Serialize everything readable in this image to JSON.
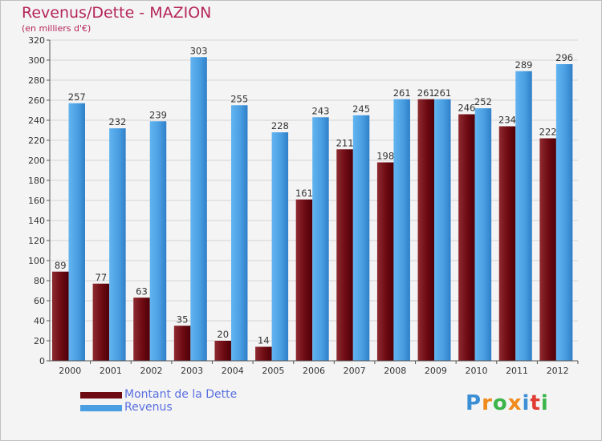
{
  "header": {
    "title": "Revenus/Dette - MAZION",
    "subtitle": "(en milliers d'€)"
  },
  "colors": {
    "dette": "#6d0a12",
    "revenus": "#4a9fe2",
    "title": "#b5265a",
    "legend_text": "#5a6fe0"
  },
  "legend": {
    "items": [
      {
        "label": "Montant de la Dette",
        "color": "#6d0a12"
      },
      {
        "label": "Revenus",
        "color": "#4a9fe2"
      }
    ]
  },
  "logo": {
    "letters": [
      "P",
      "r",
      "o",
      "x",
      "i",
      "t",
      "i"
    ],
    "colors": [
      "#3b8fd6",
      "#f08a1c",
      "#3bb54a",
      "#f08a1c",
      "#3b8fd6",
      "#e03c31",
      "#3bb54a"
    ]
  },
  "chart_data": {
    "type": "bar",
    "categories": [
      "2000",
      "2001",
      "2002",
      "2003",
      "2004",
      "2005",
      "2006",
      "2007",
      "2008",
      "2009",
      "2010",
      "2011",
      "2012"
    ],
    "series": [
      {
        "name": "Montant de la Dette",
        "values": [
          89,
          77,
          63,
          35,
          20,
          14,
          161,
          211,
          198,
          261,
          246,
          234,
          222
        ]
      },
      {
        "name": "Revenus",
        "values": [
          257,
          232,
          239,
          303,
          255,
          228,
          243,
          245,
          261,
          261,
          252,
          289,
          296
        ]
      }
    ],
    "title": "Revenus/Dette - MAZION",
    "ylabel": "(en milliers d'€)",
    "ylim": [
      0,
      320
    ],
    "yticks": [
      0,
      20,
      40,
      60,
      80,
      100,
      120,
      140,
      160,
      180,
      200,
      220,
      240,
      260,
      280,
      300,
      320
    ],
    "grid": true,
    "legend_position": "bottom-left"
  }
}
